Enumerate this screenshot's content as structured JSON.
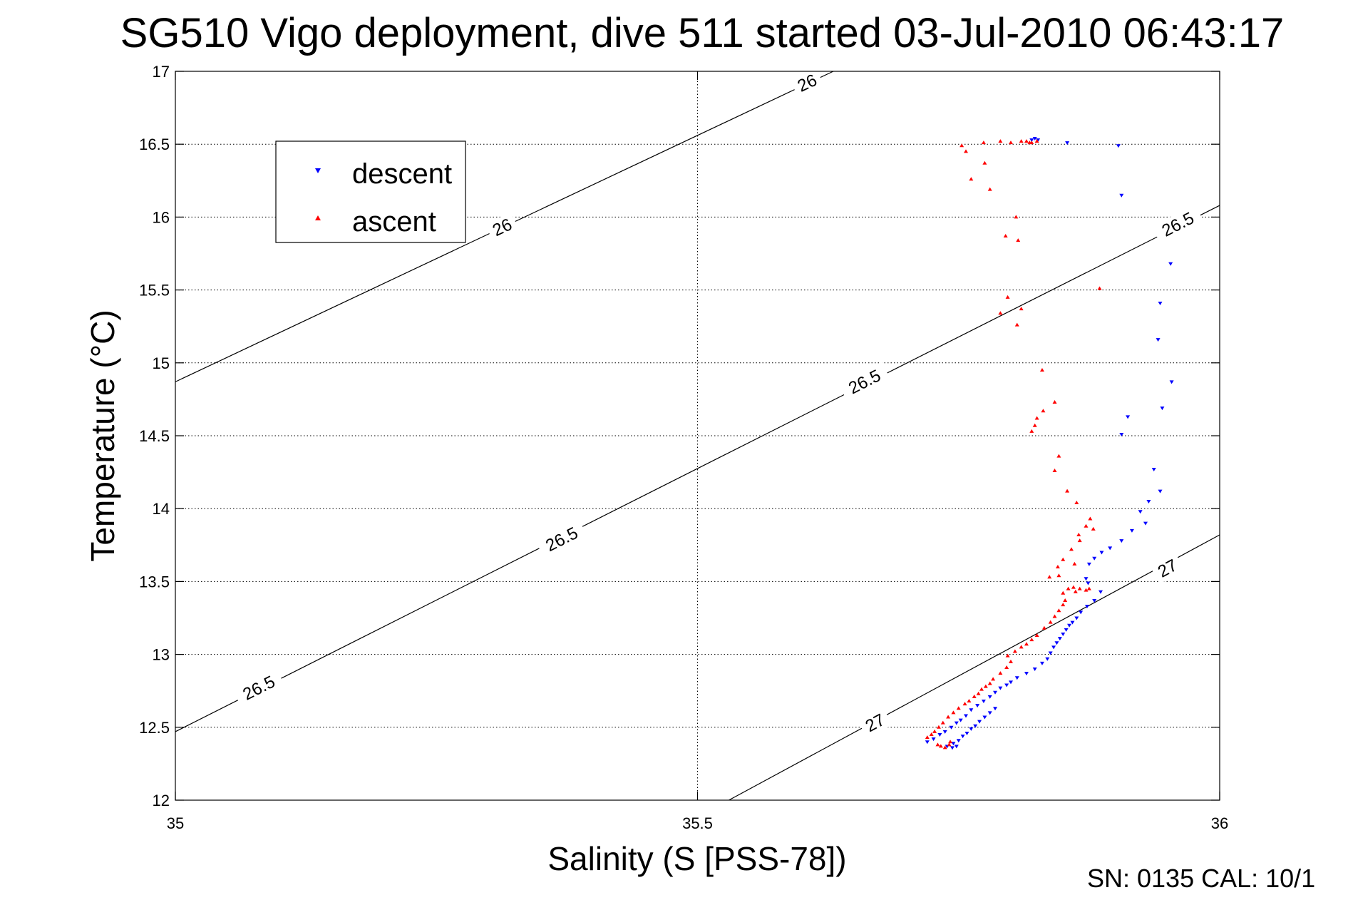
{
  "chart_data": {
    "type": "scatter",
    "title": "SG510 Vigo deployment, dive 511 started 03-Jul-2010 06:43:17",
    "xlabel": "Salinity (S [PSS-78])",
    "ylabel": "Temperature (°C)",
    "xlim": [
      35,
      36
    ],
    "ylim": [
      12,
      17
    ],
    "x_ticks": [
      "35",
      "35.5",
      "36"
    ],
    "y_ticks": [
      "12",
      "12.5",
      "13",
      "13.5",
      "14",
      "14.5",
      "15",
      "15.5",
      "16",
      "16.5",
      "17"
    ],
    "grid": true,
    "legend": {
      "placement": "top-left"
    },
    "footer": "SN: 0135  CAL: 10/1",
    "contours": [
      {
        "level": "26",
        "points": [
          [
            35.0,
            14.87
          ],
          [
            35.63,
            17.0
          ]
        ],
        "labels": [
          [
            35.313,
            15.93
          ],
          [
            35.605,
            16.92
          ]
        ]
      },
      {
        "level": "26.5",
        "points": [
          [
            35.0,
            12.47
          ],
          [
            36.0,
            16.08
          ]
        ],
        "labels": [
          [
            35.08,
            12.77
          ],
          [
            35.37,
            13.79
          ],
          [
            35.66,
            14.87
          ],
          [
            35.96,
            15.95
          ]
        ]
      },
      {
        "level": "27",
        "points": [
          [
            35.53,
            12.0
          ],
          [
            36.0,
            13.82
          ]
        ],
        "labels": [
          [
            35.67,
            12.53
          ],
          [
            35.95,
            13.59
          ]
        ]
      }
    ],
    "series": [
      {
        "name": "descent",
        "color": "#0000ff",
        "marker": "triangle-down",
        "points": [
          [
            35.82,
            16.53
          ],
          [
            35.823,
            16.54
          ],
          [
            35.826,
            16.53
          ],
          [
            35.854,
            16.51
          ],
          [
            35.903,
            16.49
          ],
          [
            35.906,
            16.15
          ],
          [
            35.953,
            15.68
          ],
          [
            35.943,
            15.41
          ],
          [
            35.941,
            15.16
          ],
          [
            35.954,
            14.87
          ],
          [
            35.945,
            14.69
          ],
          [
            35.912,
            14.63
          ],
          [
            35.906,
            14.51
          ],
          [
            35.937,
            14.27
          ],
          [
            35.943,
            14.12
          ],
          [
            35.932,
            14.05
          ],
          [
            35.924,
            13.98
          ],
          [
            35.929,
            13.9
          ],
          [
            35.916,
            13.85
          ],
          [
            35.906,
            13.78
          ],
          [
            35.895,
            13.73
          ],
          [
            35.887,
            13.7
          ],
          [
            35.88,
            13.66
          ],
          [
            35.875,
            13.62
          ],
          [
            35.872,
            13.52
          ],
          [
            35.874,
            13.49
          ],
          [
            35.886,
            13.43
          ],
          [
            35.88,
            13.37
          ],
          [
            35.873,
            13.33
          ],
          [
            35.867,
            13.29
          ],
          [
            35.863,
            13.25
          ],
          [
            35.859,
            13.22
          ],
          [
            35.856,
            13.2
          ],
          [
            35.853,
            13.17
          ],
          [
            35.85,
            13.14
          ],
          [
            35.847,
            13.11
          ],
          [
            35.844,
            13.08
          ],
          [
            35.841,
            13.05
          ],
          [
            35.838,
            13.01
          ],
          [
            35.835,
            12.97
          ],
          [
            35.83,
            12.94
          ],
          [
            35.823,
            12.9
          ],
          [
            35.815,
            12.87
          ],
          [
            35.806,
            12.84
          ],
          [
            35.8,
            12.81
          ],
          [
            35.796,
            12.79
          ],
          [
            35.79,
            12.77
          ],
          [
            35.785,
            12.74
          ],
          [
            35.78,
            12.71
          ],
          [
            35.774,
            12.68
          ],
          [
            35.768,
            12.65
          ],
          [
            35.762,
            12.62
          ],
          [
            35.757,
            12.58
          ],
          [
            35.752,
            12.55
          ],
          [
            35.748,
            12.53
          ],
          [
            35.743,
            12.5
          ],
          [
            35.737,
            12.47
          ],
          [
            35.732,
            12.45
          ],
          [
            35.726,
            12.42
          ],
          [
            35.72,
            12.4
          ],
          [
            35.748,
            12.37
          ],
          [
            35.744,
            12.36
          ],
          [
            35.739,
            12.37
          ],
          [
            35.745,
            12.39
          ],
          [
            35.75,
            12.41
          ],
          [
            35.754,
            12.44
          ],
          [
            35.758,
            12.46
          ],
          [
            35.762,
            12.49
          ],
          [
            35.766,
            12.51
          ],
          [
            35.77,
            12.54
          ],
          [
            35.775,
            12.57
          ],
          [
            35.78,
            12.6
          ],
          [
            35.785,
            12.63
          ]
        ]
      },
      {
        "name": "ascent",
        "color": "#ff0000",
        "marker": "triangle-up",
        "points": [
          [
            35.753,
            16.49
          ],
          [
            35.757,
            16.45
          ],
          [
            35.774,
            16.51
          ],
          [
            35.79,
            16.52
          ],
          [
            35.8,
            16.51
          ],
          [
            35.81,
            16.52
          ],
          [
            35.815,
            16.52
          ],
          [
            35.818,
            16.51
          ],
          [
            35.82,
            16.51
          ],
          [
            35.825,
            16.52
          ],
          [
            35.775,
            16.37
          ],
          [
            35.762,
            16.26
          ],
          [
            35.78,
            16.19
          ],
          [
            35.805,
            16.0
          ],
          [
            35.795,
            15.87
          ],
          [
            35.807,
            15.84
          ],
          [
            35.797,
            15.45
          ],
          [
            35.81,
            15.37
          ],
          [
            35.79,
            15.34
          ],
          [
            35.806,
            15.26
          ],
          [
            35.885,
            15.51
          ],
          [
            35.83,
            14.95
          ],
          [
            35.842,
            14.73
          ],
          [
            35.831,
            14.67
          ],
          [
            35.825,
            14.62
          ],
          [
            35.823,
            14.57
          ],
          [
            35.82,
            14.53
          ],
          [
            35.846,
            14.36
          ],
          [
            35.842,
            14.26
          ],
          [
            35.854,
            14.12
          ],
          [
            35.863,
            14.04
          ],
          [
            35.876,
            13.93
          ],
          [
            35.872,
            13.88
          ],
          [
            35.865,
            13.82
          ],
          [
            35.879,
            13.86
          ],
          [
            35.866,
            13.78
          ],
          [
            35.858,
            13.72
          ],
          [
            35.85,
            13.65
          ],
          [
            35.845,
            13.6
          ],
          [
            35.861,
            13.62
          ],
          [
            35.846,
            13.54
          ],
          [
            35.837,
            13.53
          ],
          [
            35.855,
            13.45
          ],
          [
            35.86,
            13.46
          ],
          [
            35.866,
            13.45
          ],
          [
            35.872,
            13.44
          ],
          [
            35.875,
            13.45
          ],
          [
            35.862,
            13.43
          ],
          [
            35.85,
            13.42
          ],
          [
            35.852,
            13.37
          ],
          [
            35.85,
            13.34
          ],
          [
            35.846,
            13.3
          ],
          [
            35.842,
            13.26
          ],
          [
            35.838,
            13.22
          ],
          [
            35.832,
            13.18
          ],
          [
            35.825,
            13.13
          ],
          [
            35.82,
            13.1
          ],
          [
            35.815,
            13.07
          ],
          [
            35.81,
            13.05
          ],
          [
            35.804,
            13.02
          ],
          [
            35.797,
            12.99
          ],
          [
            35.8,
            12.95
          ],
          [
            35.796,
            12.91
          ],
          [
            35.79,
            12.87
          ],
          [
            35.783,
            12.83
          ],
          [
            35.78,
            12.8
          ],
          [
            35.776,
            12.78
          ],
          [
            35.772,
            12.76
          ],
          [
            35.769,
            12.73
          ],
          [
            35.765,
            12.71
          ],
          [
            35.76,
            12.68
          ],
          [
            35.756,
            12.66
          ],
          [
            35.75,
            12.63
          ],
          [
            35.745,
            12.6
          ],
          [
            35.74,
            12.57
          ],
          [
            35.735,
            12.53
          ],
          [
            35.731,
            12.5
          ],
          [
            35.727,
            12.47
          ],
          [
            35.724,
            12.45
          ],
          [
            35.72,
            12.43
          ],
          [
            35.73,
            12.38
          ],
          [
            35.733,
            12.37
          ],
          [
            35.737,
            12.36
          ],
          [
            35.741,
            12.38
          ],
          [
            35.742,
            12.4
          ]
        ]
      }
    ]
  }
}
